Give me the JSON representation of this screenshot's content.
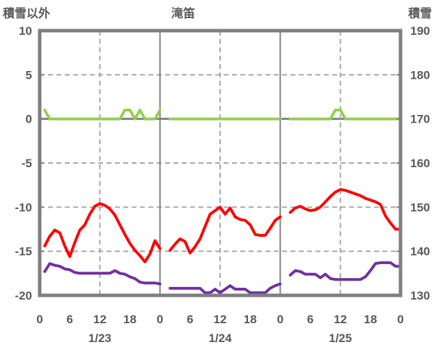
{
  "colors": {
    "red_series": "#ff0000",
    "green_series": "#92d050",
    "purple_series": "#7030a0",
    "border_gray": "#7f7f7f",
    "grid_dash_gray": "#a6a6a6",
    "text_gray": "#595959"
  },
  "chart_data": {
    "type": "line",
    "title": "滝笛",
    "left_axis": {
      "label": "積雪以外",
      "min": -20,
      "max": 10,
      "ticks": [
        10,
        5,
        0,
        -5,
        -10,
        -15,
        -20
      ]
    },
    "right_axis": {
      "label": "積雪",
      "min": 130,
      "max": 190,
      "ticks": [
        190,
        180,
        170,
        160,
        150,
        140,
        130
      ]
    },
    "x_axis": {
      "days": [
        "1/23",
        "1/24",
        "1/25"
      ],
      "hour_ticks_per_day": [
        0,
        6,
        12,
        18
      ],
      "final_tick": 0,
      "hours_per_day": 24
    },
    "grid": {
      "horizontal_dashed_at": [
        5,
        -5,
        -10,
        -15
      ],
      "zero_line_at": 0,
      "vertical_solid_at_day_boundaries": true,
      "vertical_dashed_at_noon": true
    },
    "series": [
      {
        "id": "green-line",
        "axis": "left",
        "color": "#92d050",
        "segments": [
          {
            "day": 0,
            "start_hour": 1,
            "values": [
              1,
              0,
              0,
              0,
              0,
              0,
              0,
              0,
              0,
              0,
              0,
              0,
              0,
              0,
              0,
              0,
              1,
              1,
              0,
              1,
              0,
              0,
              0,
              1
            ]
          },
          {
            "day": 1,
            "start_hour": 2,
            "values": [
              0,
              0,
              0,
              0,
              0,
              0,
              0,
              0,
              0,
              0,
              0,
              0,
              0,
              0,
              0,
              0,
              0,
              0,
              0,
              0,
              0,
              0,
              0
            ]
          },
          {
            "day": 2,
            "start_hour": 2,
            "values": [
              0,
              0,
              0,
              0,
              0,
              0,
              0,
              0,
              0,
              1,
              1,
              0,
              0,
              0,
              0,
              0,
              0,
              0,
              0,
              0,
              0,
              0,
              0
            ]
          }
        ]
      },
      {
        "id": "purple-line",
        "axis": "right",
        "color": "#7030a0",
        "segments": [
          {
            "day": 0,
            "start_hour": 1,
            "values": [
              135.4,
              137.2,
              136.8,
              136.6,
              136.0,
              135.8,
              135.2,
              135.0,
              135.0,
              135.0,
              135.0,
              135.0,
              135.0,
              135.0,
              135.6,
              135.0,
              134.8,
              134.2,
              133.8,
              133.0,
              132.8,
              132.8,
              132.8,
              132.6
            ]
          },
          {
            "day": 1,
            "start_hour": 2,
            "values": [
              131.6,
              131.6,
              131.6,
              131.6,
              131.6,
              131.6,
              131.6,
              130.6,
              130.6,
              131.4,
              130.6,
              131.4,
              132.2,
              131.4,
              131.4,
              131.4,
              130.6,
              130.6,
              130.6,
              130.6,
              131.6,
              132.2,
              132.6
            ]
          },
          {
            "day": 2,
            "start_hour": 2,
            "values": [
              134.6,
              135.6,
              135.4,
              134.8,
              134.8,
              134.8,
              134.0,
              134.8,
              133.8,
              133.6,
              133.6,
              133.6,
              133.6,
              133.6,
              133.6,
              134.2,
              135.6,
              137.2,
              137.4,
              137.4,
              137.4,
              136.6,
              136.6
            ]
          }
        ]
      },
      {
        "id": "red-line",
        "axis": "left",
        "color": "#ff0000",
        "segments": [
          {
            "day": 0,
            "start_hour": 1,
            "values": [
              -14.4,
              -13.3,
              -12.6,
              -12.9,
              -14.4,
              -15.6,
              -14.0,
              -12.6,
              -12.0,
              -10.8,
              -9.9,
              -9.6,
              -9.8,
              -10.2,
              -10.9,
              -12.0,
              -13.1,
              -14.1,
              -14.9,
              -15.5,
              -16.2,
              -15.3,
              -13.8,
              -14.7
            ]
          },
          {
            "day": 1,
            "start_hour": 2,
            "values": [
              -14.9,
              -14.2,
              -13.6,
              -13.9,
              -15.2,
              -14.5,
              -13.6,
              -12.2,
              -10.8,
              -10.4,
              -10.0,
              -10.8,
              -10.1,
              -11.1,
              -11.4,
              -11.5,
              -12.0,
              -13.1,
              -13.2,
              -13.2,
              -12.4,
              -11.5,
              -11.1
            ]
          },
          {
            "day": 2,
            "start_hour": 2,
            "values": [
              -10.6,
              -10.1,
              -9.9,
              -10.2,
              -10.4,
              -10.3,
              -10.0,
              -9.4,
              -8.8,
              -8.3,
              -8.0,
              -8.1,
              -8.3,
              -8.5,
              -8.7,
              -9.0,
              -9.2,
              -9.4,
              -9.7,
              -11.0,
              -11.8,
              -12.5,
              -12.5
            ]
          }
        ]
      }
    ]
  }
}
